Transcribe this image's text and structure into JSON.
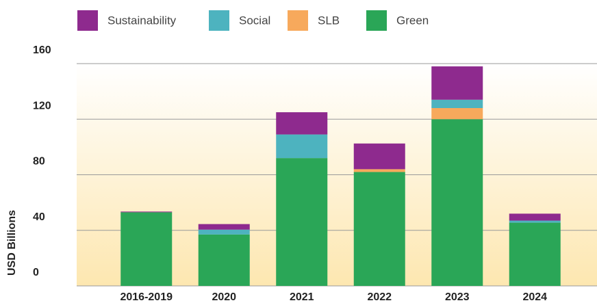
{
  "chart_data": {
    "type": "bar",
    "stacked": true,
    "y_label": "USD Billions",
    "categories": [
      "2016-2019",
      "2020",
      "2021",
      "2022",
      "2023",
      "2024"
    ],
    "series": [
      {
        "name": "Sustainability",
        "color": "#8e2a8e",
        "values": [
          0.5,
          4,
          16,
          18.5,
          24,
          5
        ]
      },
      {
        "name": "Social",
        "color": "#4db3bf",
        "values": [
          0,
          3.5,
          17,
          0,
          6,
          1.5
        ]
      },
      {
        "name": "SLB",
        "color": "#f7a95c",
        "values": [
          0,
          0,
          0,
          2,
          8,
          0
        ]
      },
      {
        "name": "Green",
        "color": "#2aa657",
        "values": [
          53,
          37,
          92,
          82,
          120,
          45.5
        ]
      }
    ],
    "ylim": [
      0,
      160
    ],
    "yticks": [
      0,
      40,
      80,
      120,
      160
    ],
    "grid": true
  }
}
